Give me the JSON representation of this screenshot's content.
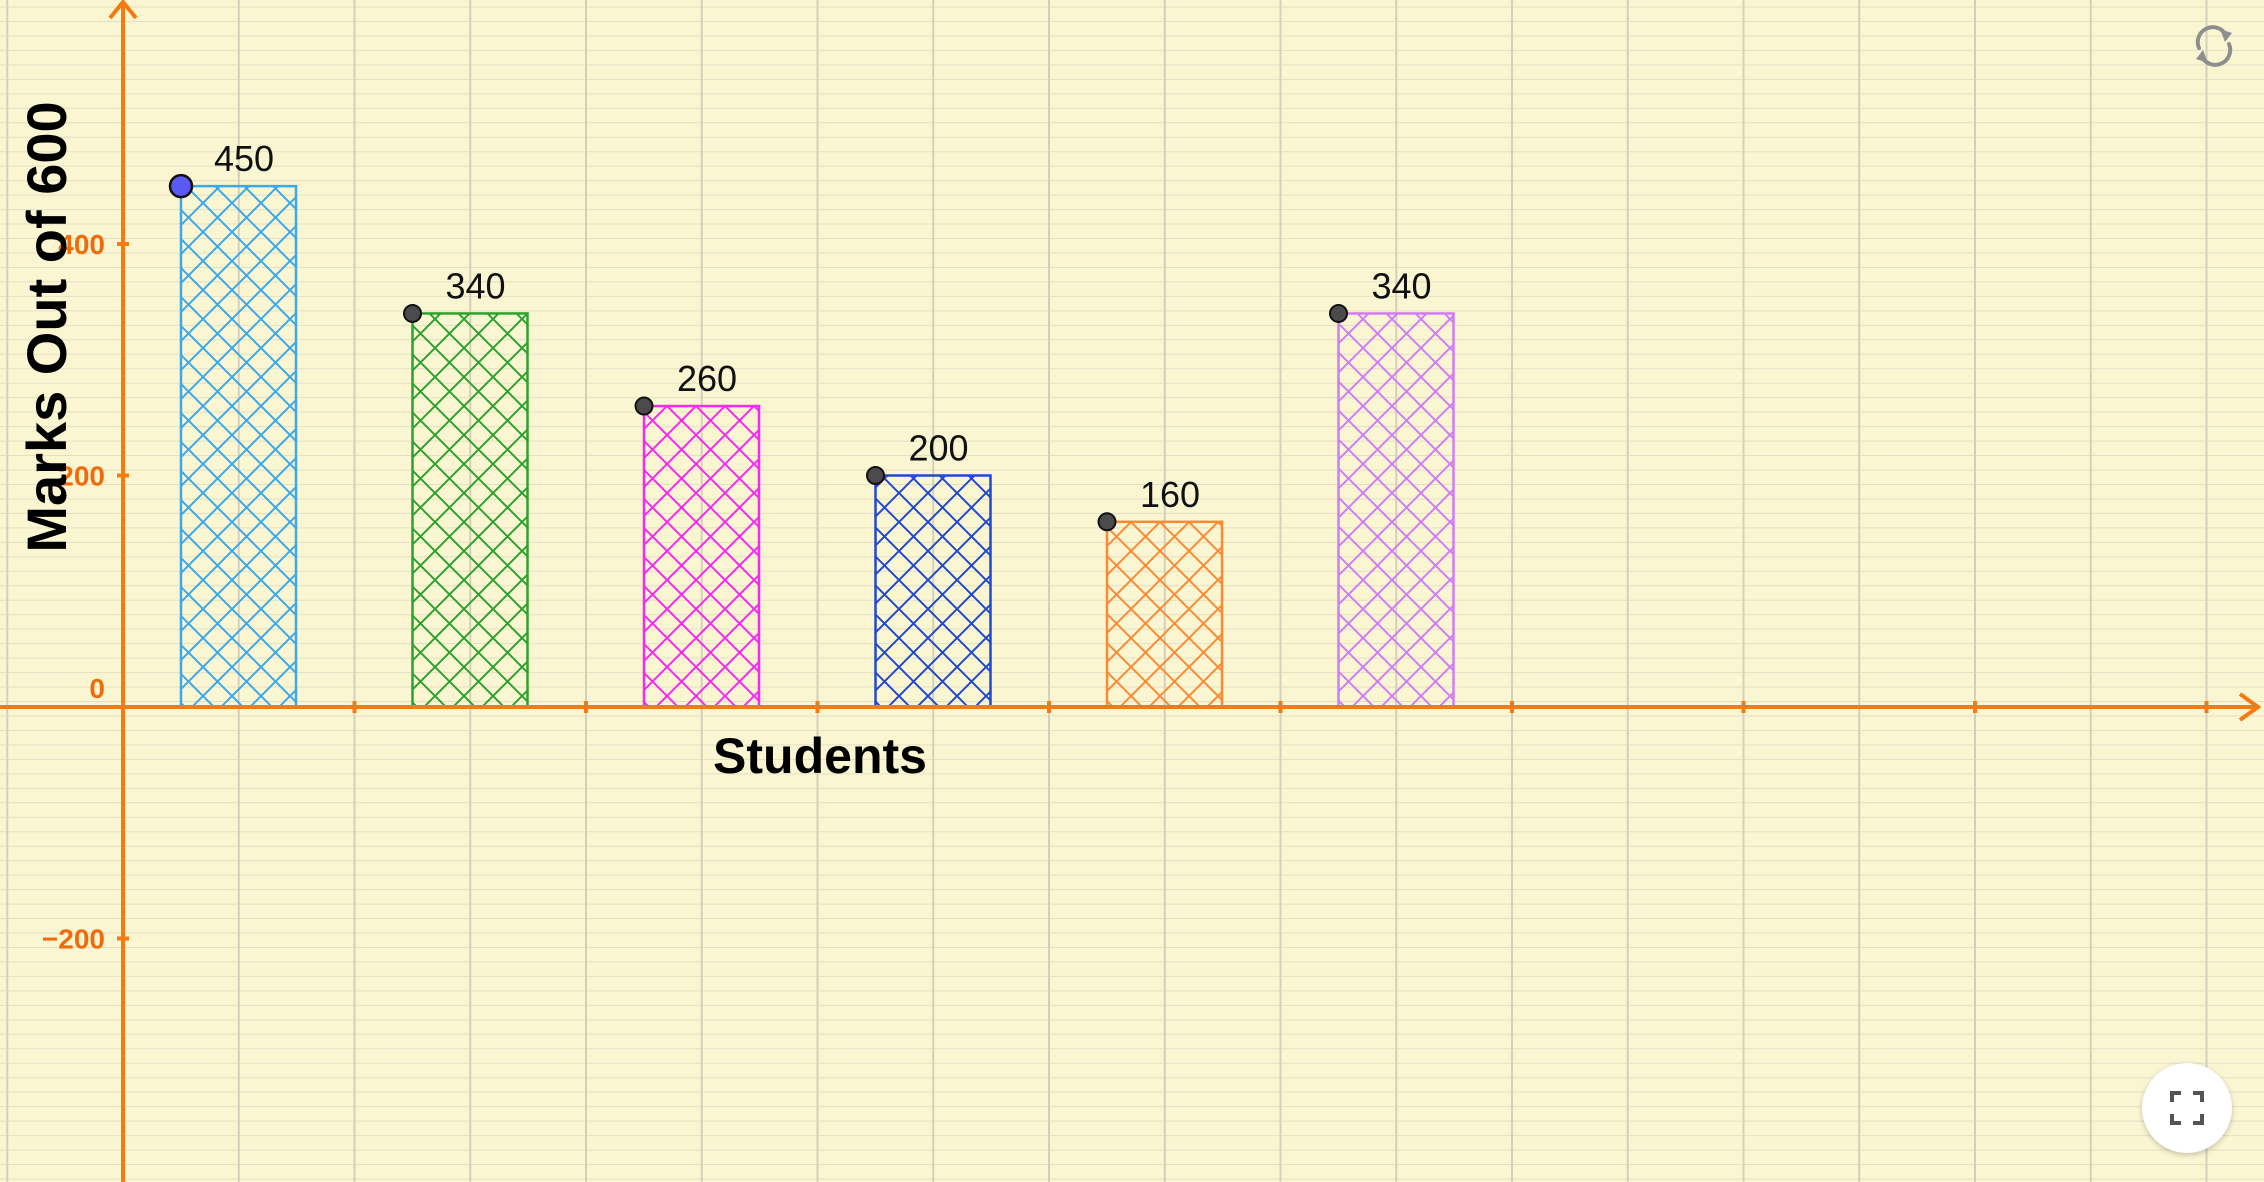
{
  "app": {
    "reset_icon": "refresh-icon",
    "fullscreen_icon": "fullscreen-icon"
  },
  "colors": {
    "background": "#fbf6d2",
    "grid_minor": "#e4dfc4",
    "grid_major": "#d5d0bb",
    "axis": "#f57a12",
    "tick_text": "#ee6d0a",
    "point_fill": "#4b4b4b",
    "selected_point_fill": "#5b59f5"
  },
  "chart_data": {
    "type": "bar",
    "xlabel": "Students",
    "ylabel": "Marks Out of 600",
    "ylim": [
      -410,
      600
    ],
    "categories": [
      "",
      "",
      "",
      "",
      "",
      ""
    ],
    "values": [
      450,
      340,
      260,
      200,
      160,
      340
    ],
    "data_labels": [
      "450",
      "340",
      "260",
      "200",
      "160",
      "340"
    ],
    "bar_colors": [
      "#3aa8ea",
      "#2ea22e",
      "#f728f0",
      "#2049cf",
      "#fb8a35",
      "#d17cf7"
    ],
    "bar_fill": "crosshatch",
    "selected_index": 0,
    "y_ticks": [
      -200,
      0,
      200,
      400
    ],
    "y_tick_labels": [
      "−200",
      "0",
      "200",
      "400"
    ],
    "grid": true
  }
}
